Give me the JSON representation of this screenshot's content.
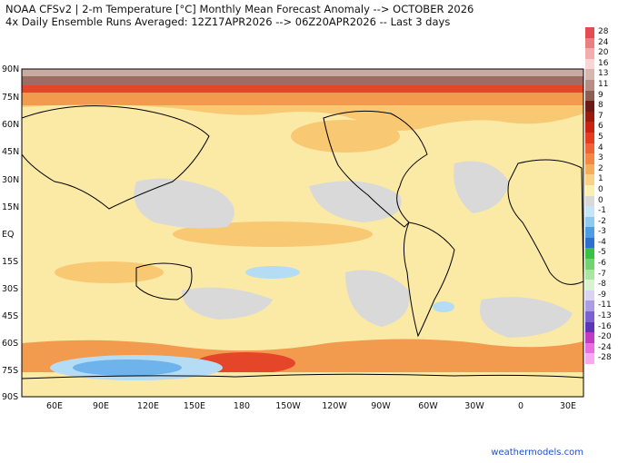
{
  "header": {
    "line1": "NOAA CFSv2 | 2-m Temperature [°C] Monthly Mean Forecast Anomaly --> OCTOBER 2026",
    "line2": "4x Daily Ensemble Runs Averaged: 12Z17APR2026 --> 06Z20APR2026 -- Last 3 days"
  },
  "map": {
    "lat_labels": [
      "90N",
      "75N",
      "60N",
      "45N",
      "30N",
      "15N",
      "EQ",
      "15S",
      "30S",
      "45S",
      "60S",
      "75S",
      "90S"
    ],
    "lon_labels": [
      "60E",
      "90E",
      "120E",
      "150E",
      "180",
      "150W",
      "120W",
      "90W",
      "60W",
      "30W",
      "0",
      "30E"
    ],
    "colors": {
      "neutral": "#d9d9d9",
      "warm_light": "#fbe9a6",
      "warm_mid": "#f8c873",
      "warm_deep": "#f29a4d",
      "hot": "#e5462a",
      "polar_brown": "#9c6d62",
      "cool_light": "#b5dcf5",
      "cool_mid": "#6eb3ec",
      "coast": "#000000"
    }
  },
  "legend": {
    "entries": [
      {
        "label": "28",
        "color": "#e44c52"
      },
      {
        "label": "24",
        "color": "#ea7f82"
      },
      {
        "label": "20",
        "color": "#f2aeae"
      },
      {
        "label": "16",
        "color": "#f8d6d6"
      },
      {
        "label": "13",
        "color": "#d5b7b0"
      },
      {
        "label": "11",
        "color": "#b48e84"
      },
      {
        "label": "9",
        "color": "#8d5c52"
      },
      {
        "label": "8",
        "color": "#6a1a12"
      },
      {
        "label": "7",
        "color": "#9a1b0d"
      },
      {
        "label": "6",
        "color": "#c9220f"
      },
      {
        "label": "5",
        "color": "#e53b1f"
      },
      {
        "label": "4",
        "color": "#ef6434"
      },
      {
        "label": "3",
        "color": "#f38845"
      },
      {
        "label": "2",
        "color": "#f6ad5c"
      },
      {
        "label": "1",
        "color": "#f9d286"
      },
      {
        "label": "0",
        "color": "#fbf0ae"
      },
      {
        "label": "0",
        "color": "#d9d9d9"
      },
      {
        "label": "-1",
        "color": "#c5e6f8"
      },
      {
        "label": "-2",
        "color": "#8ec9f0"
      },
      {
        "label": "-3",
        "color": "#4c9de3"
      },
      {
        "label": "-4",
        "color": "#2f6fce"
      },
      {
        "label": "-5",
        "color": "#3cc043"
      },
      {
        "label": "-6",
        "color": "#71d46e"
      },
      {
        "label": "-7",
        "color": "#a9e6a2"
      },
      {
        "label": "-8",
        "color": "#d8f3cf"
      },
      {
        "label": "-9",
        "color": "#d9d3f3"
      },
      {
        "label": "-11",
        "color": "#a99ee6"
      },
      {
        "label": "-13",
        "color": "#7b62d3"
      },
      {
        "label": "-16",
        "color": "#5a35b5"
      },
      {
        "label": "-20",
        "color": "#c23bc1"
      },
      {
        "label": "-24",
        "color": "#e76fe0"
      },
      {
        "label": "-28",
        "color": "#f7a9f2"
      }
    ]
  },
  "credit": "weathermodels.com"
}
